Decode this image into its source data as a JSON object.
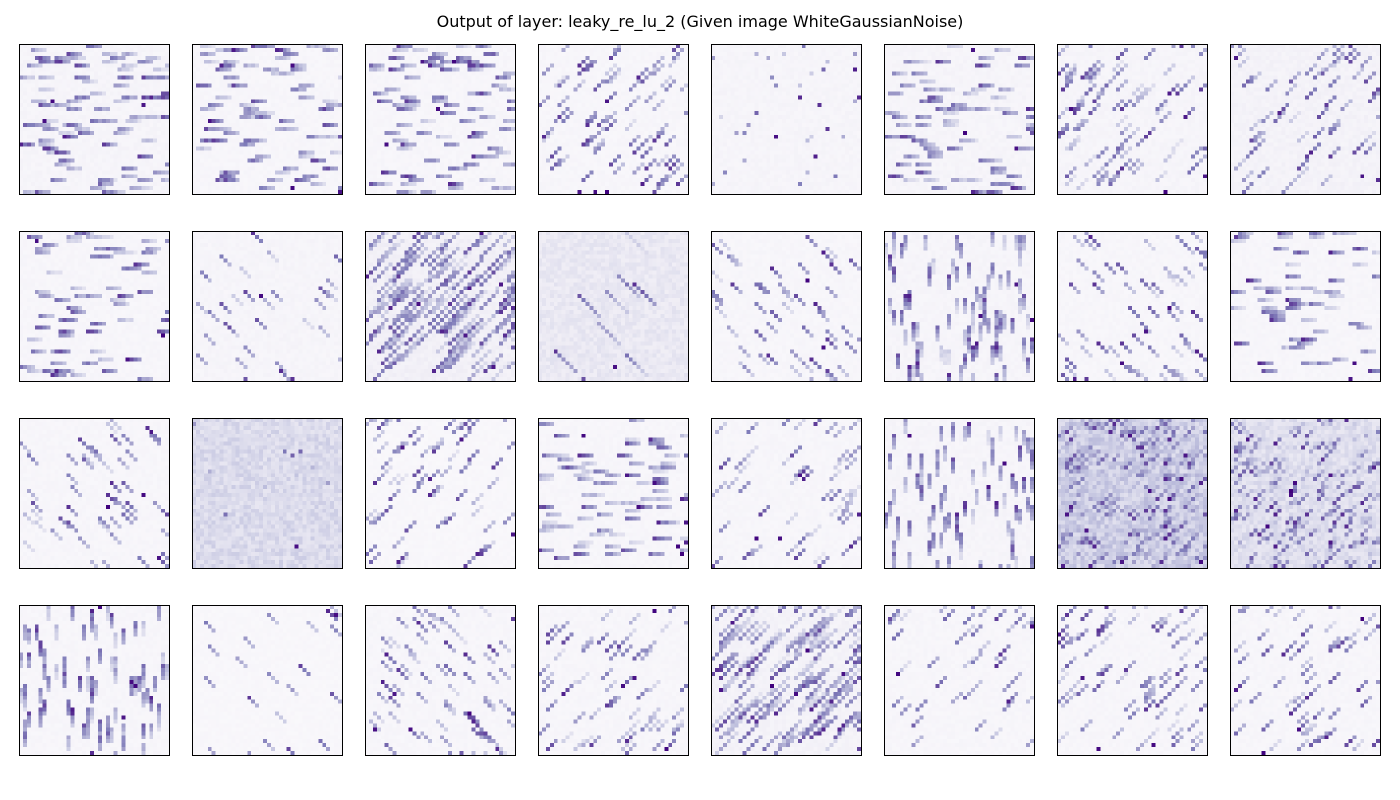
{
  "figure": {
    "title": "Output of layer: leaky_re_lu_2 (Given image WhiteGaussianNoise)"
  },
  "chart_data": {
    "type": "heatmap",
    "title": "Output of layer: leaky_re_lu_2 (Given image WhiteGaussianNoise)",
    "layout": {
      "rows": 4,
      "cols": 8
    },
    "colormap": "Purples",
    "axes_ticks": false,
    "panel_resolution": 38,
    "panels": [
      {
        "index": 0,
        "pattern": "horizontal-streaks",
        "density": 0.55,
        "background": 0.06
      },
      {
        "index": 1,
        "pattern": "horizontal-streaks",
        "density": 0.5,
        "background": 0.05
      },
      {
        "index": 2,
        "pattern": "horizontal-streaks",
        "density": 0.5,
        "background": 0.05
      },
      {
        "index": 3,
        "pattern": "diagonal-up",
        "density": 0.45,
        "background": 0.05
      },
      {
        "index": 4,
        "pattern": "sparse-dots",
        "density": 0.2,
        "background": 0.06
      },
      {
        "index": 5,
        "pattern": "horizontal-streaks",
        "density": 0.45,
        "background": 0.06
      },
      {
        "index": 6,
        "pattern": "diagonal-up",
        "density": 0.5,
        "background": 0.06
      },
      {
        "index": 7,
        "pattern": "diagonal-up",
        "density": 0.35,
        "background": 0.08
      },
      {
        "index": 8,
        "pattern": "horizontal-streaks",
        "density": 0.4,
        "background": 0.05
      },
      {
        "index": 9,
        "pattern": "diagonal-down",
        "density": 0.18,
        "background": 0.06
      },
      {
        "index": 10,
        "pattern": "diagonal-blobs",
        "density": 0.7,
        "background": 0.1
      },
      {
        "index": 11,
        "pattern": "faint-diagonal",
        "density": 0.05,
        "background": 0.16
      },
      {
        "index": 12,
        "pattern": "diagonal-down",
        "density": 0.3,
        "background": 0.05
      },
      {
        "index": 13,
        "pattern": "vertical-streaks",
        "density": 0.55,
        "background": 0.06
      },
      {
        "index": 14,
        "pattern": "diagonal-down",
        "density": 0.35,
        "background": 0.05
      },
      {
        "index": 15,
        "pattern": "horizontal-streaks",
        "density": 0.35,
        "background": 0.05
      },
      {
        "index": 16,
        "pattern": "diagonal-down",
        "density": 0.3,
        "background": 0.05
      },
      {
        "index": 17,
        "pattern": "faint-noise",
        "density": 0.06,
        "background": 0.24
      },
      {
        "index": 18,
        "pattern": "diagonal-up",
        "density": 0.35,
        "background": 0.04
      },
      {
        "index": 19,
        "pattern": "horizontal-streaks",
        "density": 0.5,
        "background": 0.05
      },
      {
        "index": 20,
        "pattern": "diagonal-up",
        "density": 0.3,
        "background": 0.05
      },
      {
        "index": 21,
        "pattern": "vertical-streaks",
        "density": 0.5,
        "background": 0.06
      },
      {
        "index": 22,
        "pattern": "dense-blobs",
        "density": 0.85,
        "background": 0.3
      },
      {
        "index": 23,
        "pattern": "dense-noise",
        "density": 0.7,
        "background": 0.22
      },
      {
        "index": 24,
        "pattern": "vertical-streaks",
        "density": 0.5,
        "background": 0.05
      },
      {
        "index": 25,
        "pattern": "diagonal-down",
        "density": 0.12,
        "background": 0.04
      },
      {
        "index": 26,
        "pattern": "diagonal-down",
        "density": 0.4,
        "background": 0.05
      },
      {
        "index": 27,
        "pattern": "diagonal-up",
        "density": 0.35,
        "background": 0.05
      },
      {
        "index": 28,
        "pattern": "diagonal-blobs",
        "density": 0.6,
        "background": 0.08
      },
      {
        "index": 29,
        "pattern": "diagonal-up",
        "density": 0.25,
        "background": 0.05
      },
      {
        "index": 30,
        "pattern": "diagonal-up",
        "density": 0.45,
        "background": 0.05
      },
      {
        "index": 31,
        "pattern": "diagonal-up",
        "density": 0.35,
        "background": 0.05
      }
    ]
  }
}
